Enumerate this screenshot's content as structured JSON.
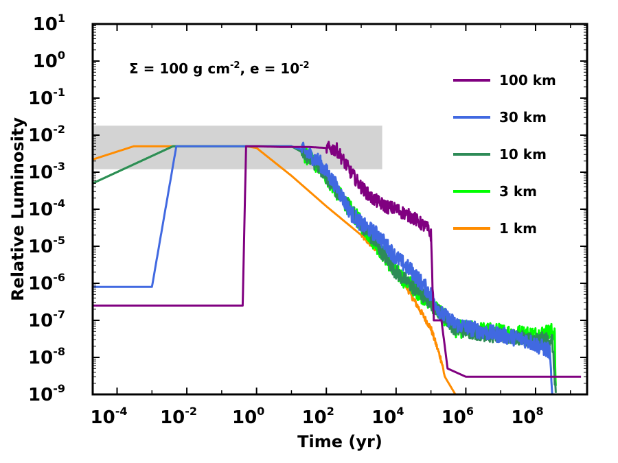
{
  "chart_data": {
    "type": "line",
    "xscale": "log",
    "yscale": "log",
    "xlabel": "Time (yr)",
    "ylabel": "Relative Luminosity",
    "xlim": [
      2e-05,
      3000000000
    ],
    "ylim": [
      1e-09,
      10
    ],
    "x_ticks": [
      {
        "base": "10",
        "exp": "-4",
        "value": 0.0001
      },
      {
        "base": "10",
        "exp": "-2",
        "value": 0.01
      },
      {
        "base": "10",
        "exp": "0",
        "value": 1
      },
      {
        "base": "10",
        "exp": "2",
        "value": 100
      },
      {
        "base": "10",
        "exp": "4",
        "value": 10000
      },
      {
        "base": "10",
        "exp": "6",
        "value": 1000000
      },
      {
        "base": "10",
        "exp": "8",
        "value": 100000000
      }
    ],
    "y_ticks": [
      {
        "base": "10",
        "exp": "1",
        "value": 10
      },
      {
        "base": "10",
        "exp": "0",
        "value": 1
      },
      {
        "base": "10",
        "exp": "-1",
        "value": 0.1
      },
      {
        "base": "10",
        "exp": "-2",
        "value": 0.01
      },
      {
        "base": "10",
        "exp": "-3",
        "value": 0.001
      },
      {
        "base": "10",
        "exp": "-4",
        "value": 0.0001
      },
      {
        "base": "10",
        "exp": "-5",
        "value": 1e-05
      },
      {
        "base": "10",
        "exp": "-6",
        "value": 1e-06
      },
      {
        "base": "10",
        "exp": "-7",
        "value": 1e-07
      },
      {
        "base": "10",
        "exp": "-8",
        "value": 1e-08
      },
      {
        "base": "10",
        "exp": "-9",
        "value": 1e-09
      }
    ],
    "annotation": {
      "part1": "Σ = 100 g cm",
      "sup1": "-2",
      "part2": ", e = 10",
      "sup2": "-2"
    },
    "shaded_band": {
      "x": [
        2e-05,
        4000
      ],
      "y": [
        0.0012,
        0.018
      ],
      "color": "#d3d3d3"
    },
    "legend_position": "upper-right",
    "series": [
      {
        "name": "100 km",
        "color": "#800080",
        "points": [
          [
            2e-05,
            2.5e-07
          ],
          [
            0.4,
            2.5e-07
          ],
          [
            0.5,
            0.005
          ],
          [
            1,
            0.005
          ],
          [
            5,
            0.0048
          ],
          [
            30,
            0.0048
          ],
          [
            100,
            0.0045
          ],
          [
            200,
            0.004
          ],
          [
            500,
            0.001
          ],
          [
            1000,
            0.0004
          ],
          [
            2000,
            0.0002
          ],
          [
            5000,
            0.00012
          ],
          [
            10000,
            0.0001
          ],
          [
            30000,
            6e-05
          ],
          [
            80000,
            3e-05
          ],
          [
            100000,
            2e-05
          ],
          [
            120000,
            1e-07
          ],
          [
            200000,
            1e-07
          ],
          [
            300000,
            5e-09
          ],
          [
            1000000,
            3e-09
          ],
          [
            2000000000,
            3e-09
          ]
        ],
        "noise": [
          [
            100,
            120000,
            0.18
          ]
        ]
      },
      {
        "name": "30 km",
        "color": "#4169e1",
        "points": [
          [
            2e-05,
            8e-07
          ],
          [
            0.001,
            8e-07
          ],
          [
            0.005,
            0.005
          ],
          [
            1,
            0.005
          ],
          [
            10,
            0.005
          ],
          [
            20,
            0.004
          ],
          [
            60,
            0.002
          ],
          [
            200,
            0.0004
          ],
          [
            500,
            8e-05
          ],
          [
            1000,
            4e-05
          ],
          [
            3000,
            2e-05
          ],
          [
            10000,
            5e-06
          ],
          [
            30000,
            2e-06
          ],
          [
            100000,
            5e-07
          ],
          [
            200000,
            1.5e-07
          ],
          [
            500000,
            8e-08
          ],
          [
            3000000,
            5e-08
          ],
          [
            50000000,
            3e-08
          ],
          [
            250000000,
            1.5e-08
          ],
          [
            300000000,
            1e-09
          ]
        ],
        "noise": [
          [
            20,
            280000000,
            0.22
          ]
        ]
      },
      {
        "name": "10 km",
        "color": "#2e8b57",
        "points": [
          [
            2e-05,
            0.0005
          ],
          [
            0.004,
            0.005
          ],
          [
            1,
            0.005
          ],
          [
            10,
            0.005
          ],
          [
            20,
            0.0035
          ],
          [
            60,
            0.0015
          ],
          [
            200,
            0.0003
          ],
          [
            1000,
            4e-05
          ],
          [
            3000,
            1e-05
          ],
          [
            10000,
            2e-06
          ],
          [
            30000,
            8e-07
          ],
          [
            100000,
            3e-07
          ],
          [
            200000,
            1.5e-07
          ],
          [
            500000,
            6e-08
          ],
          [
            5000000,
            4e-08
          ],
          [
            100000000,
            3e-08
          ],
          [
            300000000,
            3e-08
          ],
          [
            380000000,
            1e-09
          ]
        ],
        "noise": [
          [
            20,
            380000000,
            0.2
          ]
        ]
      },
      {
        "name": "3 km",
        "color": "#00ff00",
        "points": [
          [
            2e-05,
            0.0005
          ],
          [
            0.004,
            0.005
          ],
          [
            1,
            0.005
          ],
          [
            10,
            0.005
          ],
          [
            20,
            0.0035
          ],
          [
            60,
            0.0015
          ],
          [
            200,
            0.0003
          ],
          [
            1000,
            4e-05
          ],
          [
            3000,
            1e-05
          ],
          [
            10000,
            2e-06
          ],
          [
            30000,
            8e-07
          ],
          [
            100000,
            3e-07
          ],
          [
            200000,
            1.5e-07
          ],
          [
            500000,
            6e-08
          ],
          [
            5000000,
            5e-08
          ],
          [
            100000000,
            4e-08
          ],
          [
            350000000,
            5e-08
          ],
          [
            380000000,
            1e-09
          ]
        ],
        "noise": [
          [
            20,
            380000000,
            0.24
          ]
        ]
      },
      {
        "name": "1 km",
        "color": "#ff8c00",
        "points": [
          [
            2e-05,
            0.0022
          ],
          [
            0.0003,
            0.005
          ],
          [
            0.5,
            0.005
          ],
          [
            1,
            0.0045
          ],
          [
            10,
            0.0008
          ],
          [
            100,
            0.00012
          ],
          [
            1000,
            2e-05
          ],
          [
            10000,
            2.5e-06
          ],
          [
            30000,
            4e-07
          ],
          [
            100000,
            6e-08
          ],
          [
            200000,
            8e-09
          ],
          [
            250000,
            3e-09
          ],
          [
            500000,
            1e-09
          ]
        ],
        "noise": [
          [
            1000,
            250000,
            0.08
          ]
        ]
      }
    ]
  }
}
